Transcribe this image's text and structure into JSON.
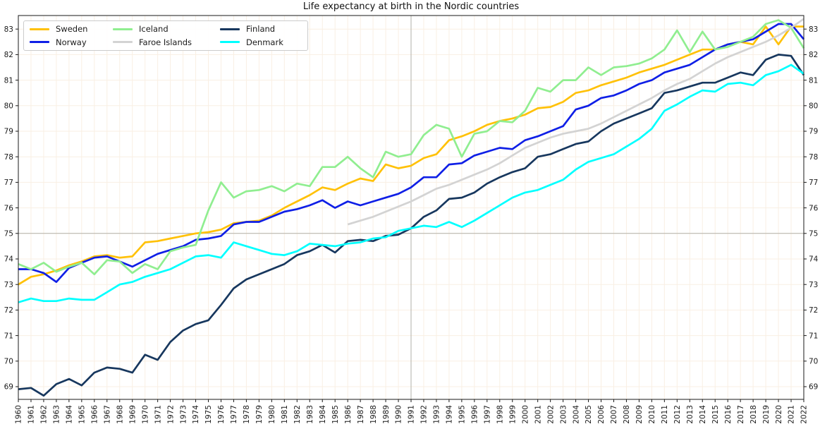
{
  "figure": {
    "title": "Life expectancy at birth in the Nordic countries"
  },
  "chart_data": {
    "type": "line",
    "title": "Life expectancy at birth in the Nordic countries",
    "xlabel": "",
    "ylabel": "",
    "xlim": [
      1960,
      2022
    ],
    "ylim": [
      68.5,
      83.55
    ],
    "grid": true,
    "x_tick_rotation": 90,
    "y_axis_on_both_sides": true,
    "legend_position": "upper left",
    "yticks": [
      69,
      70,
      71,
      72,
      73,
      74,
      75,
      76,
      77,
      78,
      79,
      80,
      81,
      82,
      83
    ],
    "x": [
      1960,
      1961,
      1962,
      1963,
      1964,
      1965,
      1966,
      1967,
      1968,
      1969,
      1970,
      1971,
      1972,
      1973,
      1974,
      1975,
      1976,
      1977,
      1978,
      1979,
      1980,
      1981,
      1982,
      1983,
      1984,
      1985,
      1986,
      1987,
      1988,
      1989,
      1990,
      1991,
      1992,
      1993,
      1994,
      1995,
      1996,
      1997,
      1998,
      1999,
      2000,
      2001,
      2002,
      2003,
      2004,
      2005,
      2006,
      2007,
      2008,
      2009,
      2010,
      2011,
      2012,
      2013,
      2014,
      2015,
      2016,
      2017,
      2018,
      2019,
      2020,
      2021,
      2022
    ],
    "reference_lines": {
      "vertical_at_year": 1991,
      "horizontal_at_value": 75
    },
    "colors": {
      "grid": "#f9efe3",
      "reference": "#b2b0a8",
      "axis": "#1a1a1a",
      "background": "#ffffff"
    },
    "series": [
      {
        "name": "Sweden",
        "color": "#ffc107",
        "values": [
          73.0,
          73.3,
          73.4,
          73.55,
          73.75,
          73.9,
          74.1,
          74.15,
          74.05,
          74.1,
          74.65,
          74.7,
          74.8,
          74.9,
          75.0,
          75.05,
          75.15,
          75.4,
          75.45,
          75.5,
          75.7,
          76.0,
          76.25,
          76.5,
          76.8,
          76.7,
          76.95,
          77.15,
          77.05,
          77.7,
          77.55,
          77.65,
          77.95,
          78.1,
          78.65,
          78.8,
          79.0,
          79.25,
          79.4,
          79.5,
          79.65,
          79.9,
          79.95,
          80.15,
          80.5,
          80.6,
          80.8,
          80.95,
          81.1,
          81.3,
          81.45,
          81.6,
          81.8,
          82.0,
          82.2,
          82.2,
          82.4,
          82.5,
          82.4,
          83.1,
          82.4,
          83.1,
          83.1
        ]
      },
      {
        "name": "Norway",
        "color": "#0f1fe6",
        "values": [
          73.6,
          73.6,
          73.45,
          73.1,
          73.65,
          73.85,
          74.05,
          74.1,
          73.9,
          73.7,
          73.95,
          74.2,
          74.35,
          74.5,
          74.75,
          74.8,
          74.9,
          75.35,
          75.45,
          75.45,
          75.65,
          75.85,
          75.95,
          76.1,
          76.3,
          76.0,
          76.25,
          76.1,
          76.25,
          76.4,
          76.55,
          76.8,
          77.2,
          77.2,
          77.7,
          77.75,
          78.05,
          78.2,
          78.35,
          78.3,
          78.65,
          78.8,
          79.0,
          79.2,
          79.85,
          80.0,
          80.3,
          80.4,
          80.6,
          80.85,
          81.0,
          81.3,
          81.45,
          81.6,
          81.9,
          82.2,
          82.4,
          82.5,
          82.6,
          82.9,
          83.2,
          83.2,
          82.6
        ]
      },
      {
        "name": "Iceland",
        "color": "#90ee90",
        "values": [
          73.8,
          73.6,
          73.85,
          73.5,
          73.7,
          73.85,
          73.4,
          73.95,
          73.9,
          73.45,
          73.8,
          73.6,
          74.3,
          74.45,
          74.55,
          75.9,
          77.0,
          76.4,
          76.65,
          76.7,
          76.85,
          76.65,
          76.95,
          76.85,
          77.6,
          77.6,
          78.0,
          77.55,
          77.2,
          78.2,
          78.0,
          78.1,
          78.85,
          79.25,
          79.1,
          78.0,
          78.9,
          79.0,
          79.4,
          79.35,
          79.8,
          80.7,
          80.55,
          81.0,
          81.0,
          81.5,
          81.2,
          81.5,
          81.55,
          81.65,
          81.85,
          82.2,
          82.95,
          82.1,
          82.9,
          82.2,
          82.3,
          82.5,
          82.7,
          83.2,
          83.35,
          83.05,
          82.25
        ]
      },
      {
        "name": "Faroe Islands",
        "color": "#d3d3d3",
        "values": [
          null,
          null,
          null,
          null,
          null,
          null,
          null,
          null,
          null,
          null,
          null,
          null,
          null,
          null,
          null,
          null,
          null,
          null,
          null,
          null,
          null,
          null,
          null,
          null,
          null,
          null,
          75.35,
          75.5,
          75.65,
          75.85,
          76.05,
          76.25,
          76.5,
          76.75,
          76.9,
          77.1,
          77.3,
          77.5,
          77.75,
          78.05,
          78.35,
          78.55,
          78.75,
          78.9,
          79.0,
          79.1,
          79.3,
          79.55,
          79.8,
          80.05,
          80.3,
          80.6,
          80.85,
          81.05,
          81.35,
          81.65,
          81.9,
          82.1,
          82.3,
          82.5,
          82.75,
          83.05,
          83.4
        ]
      },
      {
        "name": "Finland",
        "color": "#17375e",
        "values": [
          68.9,
          68.95,
          68.65,
          69.1,
          69.3,
          69.05,
          69.55,
          69.75,
          69.7,
          69.55,
          70.25,
          70.05,
          70.75,
          71.2,
          71.45,
          71.6,
          72.2,
          72.85,
          73.2,
          73.4,
          73.6,
          73.8,
          74.15,
          74.3,
          74.55,
          74.25,
          74.7,
          74.75,
          74.7,
          74.9,
          74.95,
          75.2,
          75.65,
          75.9,
          76.35,
          76.4,
          76.6,
          76.95,
          77.2,
          77.4,
          77.55,
          78.0,
          78.1,
          78.3,
          78.5,
          78.6,
          79.0,
          79.3,
          79.5,
          79.7,
          79.9,
          80.5,
          80.6,
          80.75,
          80.9,
          80.9,
          81.1,
          81.3,
          81.2,
          81.8,
          82.0,
          81.95,
          81.2
        ]
      },
      {
        "name": "Denmark",
        "color": "#00ffff",
        "values": [
          72.3,
          72.45,
          72.35,
          72.35,
          72.45,
          72.4,
          72.4,
          72.7,
          73.0,
          73.1,
          73.3,
          73.45,
          73.6,
          73.85,
          74.1,
          74.15,
          74.05,
          74.65,
          74.5,
          74.35,
          74.2,
          74.15,
          74.3,
          74.6,
          74.55,
          74.5,
          74.6,
          74.65,
          74.8,
          74.85,
          75.1,
          75.2,
          75.3,
          75.25,
          75.45,
          75.25,
          75.5,
          75.8,
          76.1,
          76.4,
          76.6,
          76.7,
          76.9,
          77.1,
          77.5,
          77.8,
          77.95,
          78.1,
          78.4,
          78.7,
          79.1,
          79.8,
          80.05,
          80.35,
          80.6,
          80.55,
          80.85,
          80.9,
          80.8,
          81.2,
          81.35,
          81.6,
          81.25
        ]
      }
    ]
  }
}
